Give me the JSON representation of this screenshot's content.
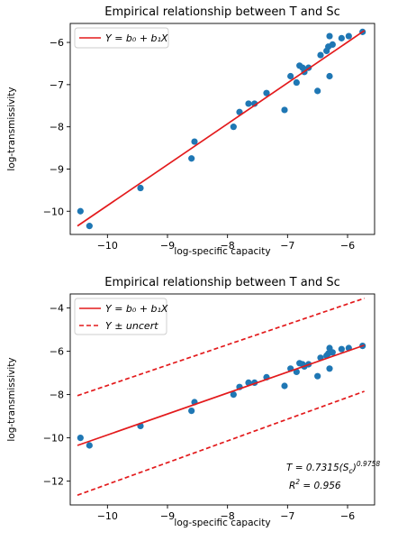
{
  "chart_data": [
    {
      "type": "scatter",
      "title": "Empirical relationship between T and Sc",
      "xlabel": "log-specific capacity",
      "ylabel": "log-transmissivity",
      "xlim": [
        -10.62,
        -5.55
      ],
      "ylim": [
        -10.55,
        -5.55
      ],
      "xticks": [
        -10,
        -9,
        -8,
        -7,
        -6
      ],
      "xtick_labels": [
        "−10",
        "−9",
        "−8",
        "−7",
        "−6"
      ],
      "yticks": [
        -10,
        -9,
        -8,
        -7,
        -6
      ],
      "ytick_labels": [
        "−10",
        "−9",
        "−8",
        "−7",
        "−6"
      ],
      "grid": false,
      "legend_loc": "top-left",
      "legend": [
        {
          "label": "Y = b₀ + b₁X",
          "style": "solid",
          "color": "#e31a1c"
        }
      ],
      "points_color": "#1f77b4",
      "points": [
        {
          "x": -10.45,
          "y": -10.0
        },
        {
          "x": -10.3,
          "y": -10.35
        },
        {
          "x": -9.45,
          "y": -9.45
        },
        {
          "x": -8.6,
          "y": -8.75
        },
        {
          "x": -8.55,
          "y": -8.35
        },
        {
          "x": -7.9,
          "y": -8.0
        },
        {
          "x": -7.8,
          "y": -7.65
        },
        {
          "x": -7.65,
          "y": -7.45
        },
        {
          "x": -7.55,
          "y": -7.45
        },
        {
          "x": -7.35,
          "y": -7.2
        },
        {
          "x": -7.05,
          "y": -7.6
        },
        {
          "x": -6.95,
          "y": -6.8
        },
        {
          "x": -6.85,
          "y": -6.95
        },
        {
          "x": -6.8,
          "y": -6.55
        },
        {
          "x": -6.75,
          "y": -6.6
        },
        {
          "x": -6.72,
          "y": -6.7
        },
        {
          "x": -6.65,
          "y": -6.6
        },
        {
          "x": -6.5,
          "y": -7.15
        },
        {
          "x": -6.45,
          "y": -6.3
        },
        {
          "x": -6.35,
          "y": -6.2
        },
        {
          "x": -6.32,
          "y": -6.1
        },
        {
          "x": -6.3,
          "y": -5.85
        },
        {
          "x": -6.3,
          "y": -6.8
        },
        {
          "x": -6.25,
          "y": -6.05
        },
        {
          "x": -6.1,
          "y": -5.9
        },
        {
          "x": -5.98,
          "y": -5.85
        },
        {
          "x": -5.75,
          "y": -5.75
        }
      ],
      "fit_line": {
        "color": "#e31a1c",
        "x": [
          -10.5,
          -5.72
        ],
        "y": [
          -10.35,
          -5.72
        ]
      }
    },
    {
      "type": "scatter",
      "title": "Empirical relationship between T and Sc",
      "xlabel": "log-specific capacity",
      "ylabel": "log-transmissivity",
      "xlim": [
        -10.62,
        -5.55
      ],
      "ylim": [
        -13.1,
        -3.35
      ],
      "xticks": [
        -10,
        -9,
        -8,
        -7,
        -6
      ],
      "xtick_labels": [
        "−10",
        "−9",
        "−8",
        "−7",
        "−6"
      ],
      "yticks": [
        -12,
        -10,
        -8,
        -6,
        -4
      ],
      "ytick_labels": [
        "−12",
        "−10",
        "−8",
        "−6",
        "−4"
      ],
      "grid": false,
      "legend_loc": "top-left",
      "legend": [
        {
          "label": "Y = b₀ + b₁X",
          "style": "solid",
          "color": "#e31a1c"
        },
        {
          "label": "Y ± uncert",
          "style": "dashed",
          "color": "#e31a1c"
        }
      ],
      "points_color": "#1f77b4",
      "points": [
        {
          "x": -10.45,
          "y": -10.0
        },
        {
          "x": -10.3,
          "y": -10.35
        },
        {
          "x": -9.45,
          "y": -9.45
        },
        {
          "x": -8.6,
          "y": -8.75
        },
        {
          "x": -8.55,
          "y": -8.35
        },
        {
          "x": -7.9,
          "y": -8.0
        },
        {
          "x": -7.8,
          "y": -7.65
        },
        {
          "x": -7.65,
          "y": -7.45
        },
        {
          "x": -7.55,
          "y": -7.45
        },
        {
          "x": -7.35,
          "y": -7.2
        },
        {
          "x": -7.05,
          "y": -7.6
        },
        {
          "x": -6.95,
          "y": -6.8
        },
        {
          "x": -6.85,
          "y": -6.95
        },
        {
          "x": -6.8,
          "y": -6.55
        },
        {
          "x": -6.75,
          "y": -6.6
        },
        {
          "x": -6.72,
          "y": -6.7
        },
        {
          "x": -6.65,
          "y": -6.6
        },
        {
          "x": -6.5,
          "y": -7.15
        },
        {
          "x": -6.45,
          "y": -6.3
        },
        {
          "x": -6.35,
          "y": -6.2
        },
        {
          "x": -6.32,
          "y": -6.1
        },
        {
          "x": -6.3,
          "y": -5.85
        },
        {
          "x": -6.3,
          "y": -6.8
        },
        {
          "x": -6.25,
          "y": -6.05
        },
        {
          "x": -6.1,
          "y": -5.9
        },
        {
          "x": -5.98,
          "y": -5.85
        },
        {
          "x": -5.75,
          "y": -5.75
        }
      ],
      "fit_line": {
        "color": "#e31a1c",
        "x": [
          -10.5,
          -5.72
        ],
        "y": [
          -10.35,
          -5.72
        ]
      },
      "upper_line": {
        "color": "#e31a1c",
        "x": [
          -10.5,
          -5.72
        ],
        "y": [
          -8.05,
          -3.55
        ]
      },
      "lower_line": {
        "color": "#e31a1c",
        "x": [
          -10.5,
          -5.72
        ],
        "y": [
          -12.65,
          -7.85
        ]
      },
      "annotation": {
        "equation": "T = 0.7315(S",
        "equation_sub": "c",
        "equation_close": ")",
        "equation_exp": "0.9758",
        "r2_prefix": "R",
        "r2_sup": "2",
        "r2_value": " = 0.956"
      }
    }
  ]
}
